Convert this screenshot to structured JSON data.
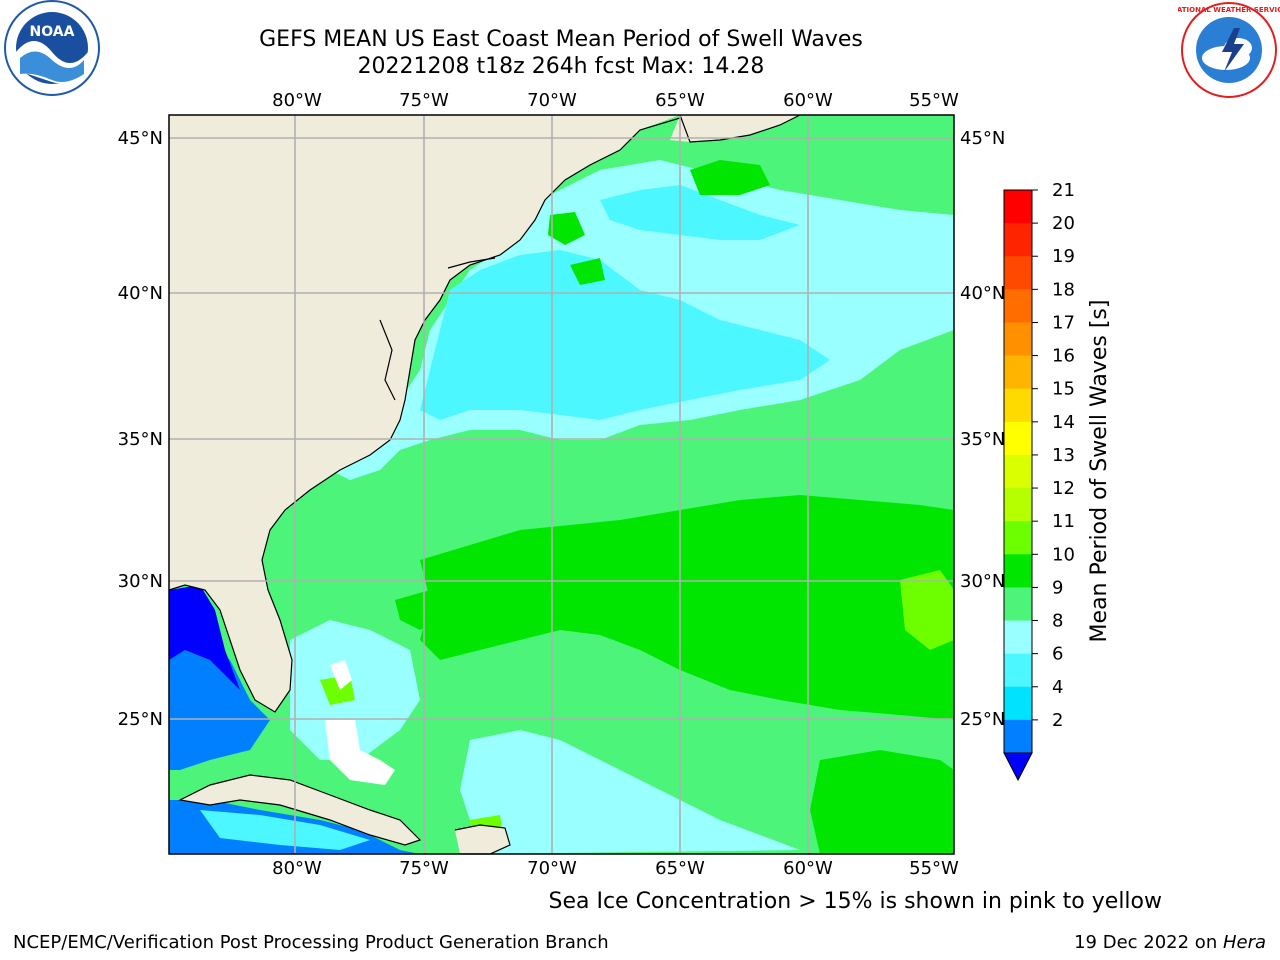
{
  "header": {
    "title_line1": "GEFS MEAN US East Coast Mean Period of Swell Waves",
    "title_line2": "20221208 t18z 264h fcst   Max: 14.28"
  },
  "map": {
    "lon_labels": [
      "80°W",
      "75°W",
      "70°W",
      "65°W",
      "60°W",
      "55°W"
    ],
    "lat_labels": [
      "45°N",
      "40°N",
      "35°N",
      "30°N",
      "25°N"
    ],
    "land_color": "#efecdc",
    "grid_color": "#b0b0b0"
  },
  "colorbar": {
    "title": "Mean Period of Swell Waves [s]",
    "labels": [
      "21",
      "20",
      "19",
      "18",
      "17",
      "16",
      "15",
      "14",
      "13",
      "12",
      "11",
      "10",
      "9",
      "8",
      "6",
      "4",
      "2"
    ],
    "colors": [
      "#ff0000",
      "#ff2400",
      "#ff4800",
      "#ff6d00",
      "#ff9100",
      "#ffb500",
      "#ffda00",
      "#ffff00",
      "#daff00",
      "#b5ff00",
      "#6dff00",
      "#00e600",
      "#4cf57a",
      "#99ffff",
      "#4cf7ff",
      "#00e3ff",
      "#0080ff"
    ],
    "under_color": "#0000ff"
  },
  "footer": {
    "sea_ice_note": "Sea Ice Concentration > 15% is shown in pink to yellow",
    "credit_left": "NCEP/EMC/Verification Post Processing Product Generation Branch",
    "credit_date": "19 Dec 2022 on ",
    "credit_machine": "Hera"
  },
  "logos": {
    "left": "noaa-logo",
    "right": "national-weather-service-logo",
    "left_text": "NOAA",
    "right_text": "NATIONAL WEATHER SERVICE"
  }
}
